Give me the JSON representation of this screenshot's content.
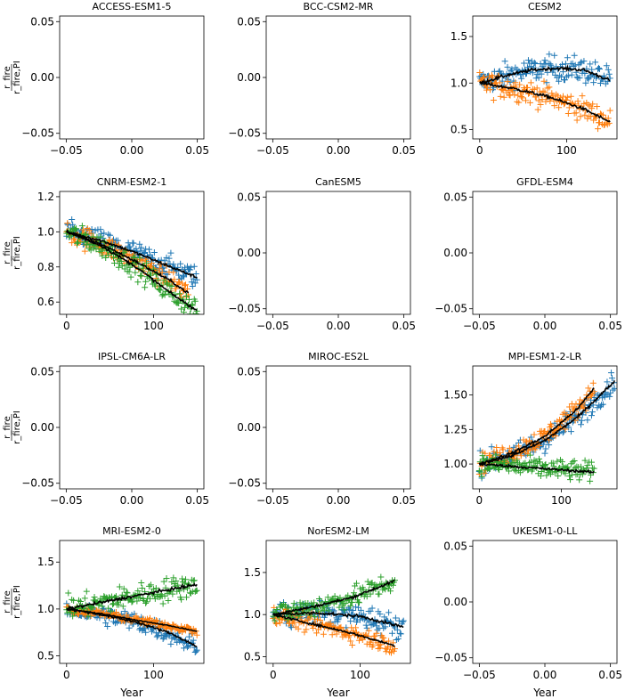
{
  "colors": {
    "blue": "#1f77b4",
    "orange": "#ff7f0e",
    "green": "#2ca02c",
    "fit": "#000000"
  },
  "xlabel": "Year",
  "ylabel_num": "r_fire",
  "ylabel_den": "r_fire,PI",
  "chart_data": [
    {
      "title": "ACCESS-ESM1-5",
      "type": "scatter",
      "empty": true,
      "xlim": [
        -0.055,
        0.055
      ],
      "ylim": [
        -0.055,
        0.055
      ],
      "xticks": [
        "-0.05",
        "0.00",
        "0.05"
      ],
      "yticks": [
        "-0.05",
        "0.00",
        "0.05"
      ],
      "series": []
    },
    {
      "title": "BCC-CSM2-MR",
      "type": "scatter",
      "empty": true,
      "xlim": [
        -0.055,
        0.055
      ],
      "ylim": [
        -0.055,
        0.055
      ],
      "xticks": [
        "-0.05",
        "0.00",
        "0.05"
      ],
      "yticks": [
        "-0.05",
        "0.00",
        "0.05"
      ],
      "series": []
    },
    {
      "title": "CESM2",
      "type": "scatter",
      "empty": false,
      "xlim": [
        -8,
        158
      ],
      "ylim": [
        0.4,
        1.72
      ],
      "xticks": [
        "0",
        "100"
      ],
      "yticks": [
        "0.5",
        "1.0",
        "1.5"
      ],
      "series": [
        {
          "color": "blue",
          "n": 150,
          "fit": [
            [
              0,
              1.0
            ],
            [
              30,
              1.08
            ],
            [
              60,
              1.14
            ],
            [
              90,
              1.16
            ],
            [
              120,
              1.14
            ],
            [
              150,
              1.03
            ]
          ],
          "spread": 0.13
        },
        {
          "color": "orange",
          "n": 150,
          "fit": [
            [
              0,
              1.0
            ],
            [
              40,
              0.94
            ],
            [
              80,
              0.85
            ],
            [
              120,
              0.72
            ],
            [
              150,
              0.58
            ]
          ],
          "spread": 0.12
        }
      ]
    },
    {
      "title": "CNRM-ESM2-1",
      "type": "scatter",
      "empty": false,
      "xlim": [
        -8,
        158
      ],
      "ylim": [
        0.53,
        1.23
      ],
      "xticks": [
        "0",
        "100"
      ],
      "yticks": [
        "0.6",
        "0.8",
        "1.0",
        "1.2"
      ],
      "series": [
        {
          "color": "blue",
          "n": 150,
          "fit": [
            [
              0,
              1.0
            ],
            [
              40,
              0.95
            ],
            [
              80,
              0.88
            ],
            [
              120,
              0.8
            ],
            [
              150,
              0.74
            ]
          ],
          "spread": 0.06
        },
        {
          "color": "orange",
          "n": 140,
          "fit": [
            [
              0,
              1.0
            ],
            [
              40,
              0.93
            ],
            [
              80,
              0.83
            ],
            [
              120,
              0.72
            ],
            [
              140,
              0.65
            ]
          ],
          "spread": 0.06
        },
        {
          "color": "green",
          "n": 150,
          "fit": [
            [
              0,
              1.0
            ],
            [
              40,
              0.92
            ],
            [
              80,
              0.8
            ],
            [
              120,
              0.65
            ],
            [
              150,
              0.55
            ]
          ],
          "spread": 0.06
        }
      ]
    },
    {
      "title": "CanESM5",
      "type": "scatter",
      "empty": true,
      "xlim": [
        -0.055,
        0.055
      ],
      "ylim": [
        -0.055,
        0.055
      ],
      "xticks": [
        "-0.05",
        "0.00",
        "0.05"
      ],
      "yticks": [
        "-0.05",
        "0.00",
        "0.05"
      ],
      "series": []
    },
    {
      "title": "GFDL-ESM4",
      "type": "scatter",
      "empty": true,
      "xlim": [
        -0.055,
        0.055
      ],
      "ylim": [
        -0.055,
        0.055
      ],
      "xticks": [
        "-0.05",
        "0.00",
        "0.05"
      ],
      "yticks": [
        "-0.05",
        "0.00",
        "0.05"
      ],
      "series": []
    },
    {
      "title": "IPSL-CM6A-LR",
      "type": "scatter",
      "empty": true,
      "xlim": [
        -0.055,
        0.055
      ],
      "ylim": [
        -0.055,
        0.055
      ],
      "xticks": [
        "-0.05",
        "0.00",
        "0.05"
      ],
      "yticks": [
        "-0.05",
        "0.00",
        "0.05"
      ],
      "series": []
    },
    {
      "title": "MIROC-ES2L",
      "type": "scatter",
      "empty": true,
      "xlim": [
        -0.055,
        0.055
      ],
      "ylim": [
        -0.055,
        0.055
      ],
      "xticks": [
        "-0.05",
        "0.00",
        "0.05"
      ],
      "yticks": [
        "-0.05",
        "0.00",
        "0.05"
      ],
      "series": []
    },
    {
      "title": "MPI-ESM1-2-LR",
      "type": "scatter",
      "empty": false,
      "xlim": [
        -8,
        168
      ],
      "ylim": [
        0.82,
        1.71
      ],
      "xticks": [
        "0",
        "100"
      ],
      "yticks": [
        "1.00",
        "1.25",
        "1.50"
      ],
      "series": [
        {
          "color": "blue",
          "n": 165,
          "fit": [
            [
              0,
              1.0
            ],
            [
              40,
              1.06
            ],
            [
              80,
              1.17
            ],
            [
              120,
              1.34
            ],
            [
              165,
              1.6
            ]
          ],
          "spread": 0.08
        },
        {
          "color": "orange",
          "n": 140,
          "fit": [
            [
              0,
              1.0
            ],
            [
              40,
              1.08
            ],
            [
              80,
              1.2
            ],
            [
              120,
              1.4
            ],
            [
              140,
              1.55
            ]
          ],
          "spread": 0.07
        },
        {
          "color": "green",
          "n": 140,
          "fit": [
            [
              0,
              1.0
            ],
            [
              70,
              0.97
            ],
            [
              140,
              0.94
            ]
          ],
          "spread": 0.07
        }
      ]
    },
    {
      "title": "MRI-ESM2-0",
      "type": "scatter",
      "empty": false,
      "xlim": [
        -8,
        158
      ],
      "ylim": [
        0.42,
        1.73
      ],
      "xticks": [
        "0",
        "100"
      ],
      "yticks": [
        "0.5",
        "1.0",
        "1.5"
      ],
      "series": [
        {
          "color": "blue",
          "n": 150,
          "fit": [
            [
              0,
              1.0
            ],
            [
              40,
              0.94
            ],
            [
              80,
              0.86
            ],
            [
              120,
              0.74
            ],
            [
              150,
              0.6
            ]
          ],
          "spread": 0.1
        },
        {
          "color": "orange",
          "n": 150,
          "fit": [
            [
              0,
              1.0
            ],
            [
              40,
              0.95
            ],
            [
              80,
              0.88
            ],
            [
              120,
              0.82
            ],
            [
              150,
              0.76
            ]
          ],
          "spread": 0.04
        },
        {
          "color": "green",
          "n": 150,
          "fit": [
            [
              0,
              1.0
            ],
            [
              40,
              1.07
            ],
            [
              80,
              1.14
            ],
            [
              120,
              1.21
            ],
            [
              150,
              1.26
            ]
          ],
          "spread": 0.12
        }
      ]
    },
    {
      "title": "NorESM2-LM",
      "type": "scatter",
      "empty": false,
      "xlim": [
        -8,
        158
      ],
      "ylim": [
        0.42,
        1.88
      ],
      "xticks": [
        "0",
        "100"
      ],
      "yticks": [
        "0.5",
        "1.0",
        "1.5"
      ],
      "series": [
        {
          "color": "blue",
          "n": 150,
          "fit": [
            [
              0,
              1.0
            ],
            [
              50,
              1.02
            ],
            [
              100,
              0.98
            ],
            [
              150,
              0.85
            ]
          ],
          "spread": 0.14
        },
        {
          "color": "orange",
          "n": 140,
          "fit": [
            [
              0,
              1.0
            ],
            [
              40,
              0.9
            ],
            [
              90,
              0.78
            ],
            [
              140,
              0.63
            ]
          ],
          "spread": 0.1
        },
        {
          "color": "green",
          "n": 140,
          "fit": [
            [
              0,
              1.0
            ],
            [
              40,
              1.08
            ],
            [
              90,
              1.2
            ],
            [
              140,
              1.4
            ]
          ],
          "spread": 0.12
        }
      ]
    },
    {
      "title": "UKESM1-0-LL",
      "type": "scatter",
      "empty": true,
      "xlim": [
        -0.055,
        0.055
      ],
      "ylim": [
        -0.055,
        0.055
      ],
      "xticks": [
        "-0.05",
        "0.00",
        "0.05"
      ],
      "yticks": [
        "-0.05",
        "0.00",
        "0.05"
      ],
      "series": []
    }
  ]
}
